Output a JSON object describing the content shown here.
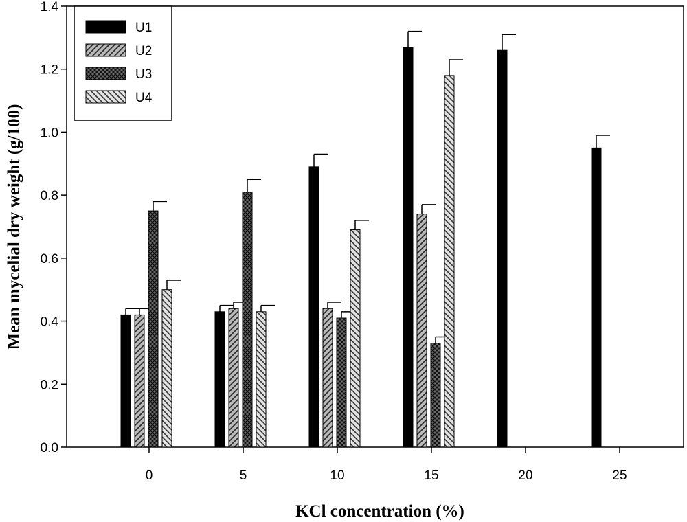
{
  "chart_data": {
    "type": "bar",
    "title": "",
    "xlabel": "KCl concentration (%)",
    "ylabel": "Mean mycelial dry weight (g/100)",
    "categories": [
      "0",
      "5",
      "10",
      "15",
      "20",
      "25"
    ],
    "ylim": [
      0,
      1.4
    ],
    "yticks": [
      "0.0",
      "0.2",
      "0.4",
      "0.6",
      "0.8",
      "1.0",
      "1.2",
      "1.4"
    ],
    "error_bars": "upper",
    "legend_position": "top-left",
    "grid": false,
    "series": [
      {
        "name": "U1",
        "fill": "solid-black",
        "values": [
          0.42,
          0.43,
          0.89,
          1.27,
          1.26,
          0.95
        ],
        "errors": [
          0.02,
          0.02,
          0.04,
          0.05,
          0.05,
          0.04
        ]
      },
      {
        "name": "U2",
        "fill": "gray-diagonal-hatch",
        "values": [
          0.42,
          0.44,
          0.44,
          0.74,
          null,
          null
        ],
        "errors": [
          0.02,
          0.02,
          0.02,
          0.03,
          null,
          null
        ]
      },
      {
        "name": "U3",
        "fill": "dark-crosshatch",
        "values": [
          0.75,
          0.81,
          0.41,
          0.33,
          null,
          null
        ],
        "errors": [
          0.03,
          0.04,
          0.02,
          0.02,
          null,
          null
        ]
      },
      {
        "name": "U4",
        "fill": "light-diagonal-hatch",
        "values": [
          0.5,
          0.43,
          0.69,
          1.18,
          null,
          null
        ],
        "errors": [
          0.03,
          0.02,
          0.03,
          0.05,
          null,
          null
        ]
      }
    ]
  }
}
